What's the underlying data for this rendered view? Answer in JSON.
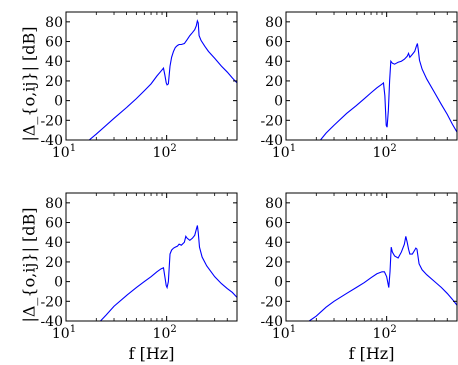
{
  "figure": {
    "ylabel": "|Δ_{o,ij}| [dB]",
    "xlabel": "f [Hz]"
  },
  "axes_common": {
    "xscale": "log",
    "xlim": [
      10,
      500
    ],
    "ylim": [
      -40,
      90
    ],
    "xticks": [
      {
        "base": "10",
        "exp": "1"
      },
      {
        "base": "10",
        "exp": "2"
      }
    ],
    "yticks": [
      "80",
      "60",
      "40",
      "20",
      "0",
      "-20",
      "-40"
    ],
    "line_color": "#0000ff",
    "grid": false
  },
  "chart_data": [
    {
      "type": "line",
      "panel": "top-left",
      "xlabel": "",
      "ylabel": "|Δ_{o,ij}| [dB]",
      "x": [
        17,
        20,
        30,
        40,
        50,
        60,
        70,
        80,
        88,
        93,
        96,
        99,
        101,
        104,
        108,
        112,
        117,
        122,
        128,
        133,
        140,
        150,
        160,
        170,
        180,
        190,
        197,
        202,
        206,
        210,
        220,
        240,
        260,
        300,
        350,
        400,
        450,
        500
      ],
      "y": [
        -40,
        -34,
        -18,
        -7,
        2,
        10,
        17,
        25,
        30,
        33,
        26,
        18,
        16,
        17,
        35,
        44,
        50,
        54,
        56,
        57,
        57,
        58,
        62,
        66,
        69,
        72,
        76,
        81,
        79,
        66,
        61,
        55,
        50,
        43,
        35,
        29,
        23,
        18
      ]
    },
    {
      "type": "line",
      "panel": "top-right",
      "xlabel": "",
      "ylabel": "",
      "x": [
        22,
        25,
        30,
        40,
        50,
        60,
        70,
        80,
        88,
        93,
        96,
        99,
        101,
        104,
        107,
        110,
        114,
        120,
        125,
        130,
        140,
        150,
        160,
        165,
        170,
        180,
        190,
        197,
        202,
        206,
        212,
        225,
        250,
        300,
        350,
        400,
        450,
        500
      ],
      "y": [
        -40,
        -33,
        -25,
        -13,
        -5,
        2,
        8,
        13,
        16,
        18,
        5,
        -25,
        -27,
        -10,
        20,
        40,
        38,
        37,
        38,
        39,
        40,
        42,
        45,
        48,
        44,
        47,
        50,
        55,
        58,
        52,
        41,
        32,
        22,
        8,
        -4,
        -14,
        -24,
        -32
      ]
    },
    {
      "type": "line",
      "panel": "bottom-left",
      "xlabel": "f [Hz]",
      "ylabel": "|Δ_{o,ij}| [dB]",
      "x": [
        22,
        25,
        30,
        40,
        50,
        60,
        70,
        80,
        88,
        93,
        96,
        99,
        101,
        104,
        108,
        112,
        117,
        122,
        128,
        133,
        140,
        150,
        155,
        160,
        170,
        180,
        190,
        197,
        202,
        206,
        212,
        225,
        250,
        300,
        350,
        400,
        450,
        500
      ],
      "y": [
        -40,
        -34,
        -25,
        -14,
        -6,
        0,
        5,
        10,
        13,
        14,
        5,
        -4,
        -6,
        0,
        28,
        32,
        34,
        35,
        36,
        38,
        37,
        40,
        46,
        44,
        42,
        44,
        47,
        53,
        57,
        50,
        35,
        25,
        16,
        5,
        -2,
        -7,
        -11,
        -16
      ]
    },
    {
      "type": "line",
      "panel": "bottom-right",
      "xlabel": "f [Hz]",
      "ylabel": "",
      "x": [
        17,
        20,
        25,
        30,
        40,
        50,
        60,
        70,
        80,
        90,
        95,
        100,
        105,
        108,
        111,
        114,
        120,
        130,
        140,
        150,
        155,
        160,
        165,
        170,
        180,
        190,
        195,
        200,
        210,
        225,
        250,
        300,
        350,
        400,
        450,
        500
      ],
      "y": [
        -40,
        -35,
        -26,
        -20,
        -12,
        -6,
        -1,
        4,
        8,
        10,
        10,
        5,
        -6,
        10,
        35,
        30,
        26,
        24,
        30,
        38,
        46,
        40,
        33,
        28,
        28,
        32,
        34,
        33,
        18,
        12,
        7,
        0,
        -6,
        -12,
        -18,
        -24
      ]
    }
  ]
}
